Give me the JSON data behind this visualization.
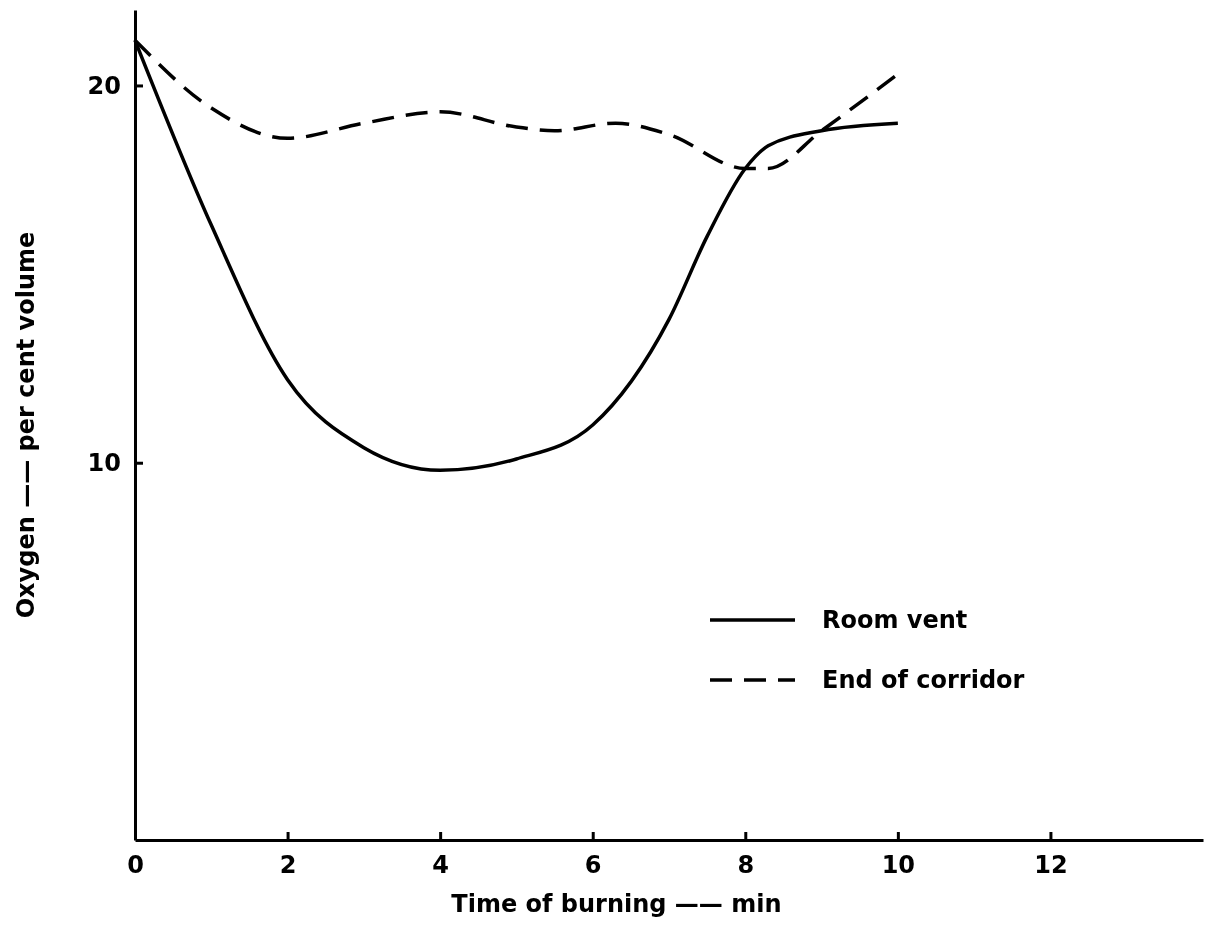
{
  "chart_data": {
    "type": "line",
    "xlabel": "Time of burning —— min",
    "ylabel": "Oxygen —— per cent volume",
    "xlim": [
      0,
      14
    ],
    "xticks": [
      0,
      2,
      4,
      6,
      8,
      10,
      12
    ],
    "ylim": [
      0,
      22
    ],
    "yticks": [
      10,
      20
    ],
    "legend": "bottom right",
    "grid": false,
    "series": [
      {
        "name": "Room vent",
        "color": "#000000",
        "line_style": "solid",
        "x": [
          0,
          1,
          2,
          3,
          4,
          5,
          6,
          7,
          7.5,
          8,
          8.3,
          9,
          10
        ],
        "values": [
          21.2,
          16.3,
          12.2,
          10.4,
          9.8,
          10.1,
          11,
          13.8,
          16,
          17.8,
          18.4,
          18.8,
          19
        ]
      },
      {
        "name": "End of corridor",
        "color": "#000000",
        "line_style": "dashed",
        "x": [
          0,
          1,
          2,
          3,
          4,
          5,
          5.5,
          6.3,
          7,
          8,
          8.3,
          9,
          10
        ],
        "values": [
          21.2,
          19.4,
          18.6,
          19,
          19.3,
          18.9,
          18.8,
          19,
          18.7,
          17.8,
          17.8,
          18.8,
          20.3
        ]
      }
    ]
  }
}
